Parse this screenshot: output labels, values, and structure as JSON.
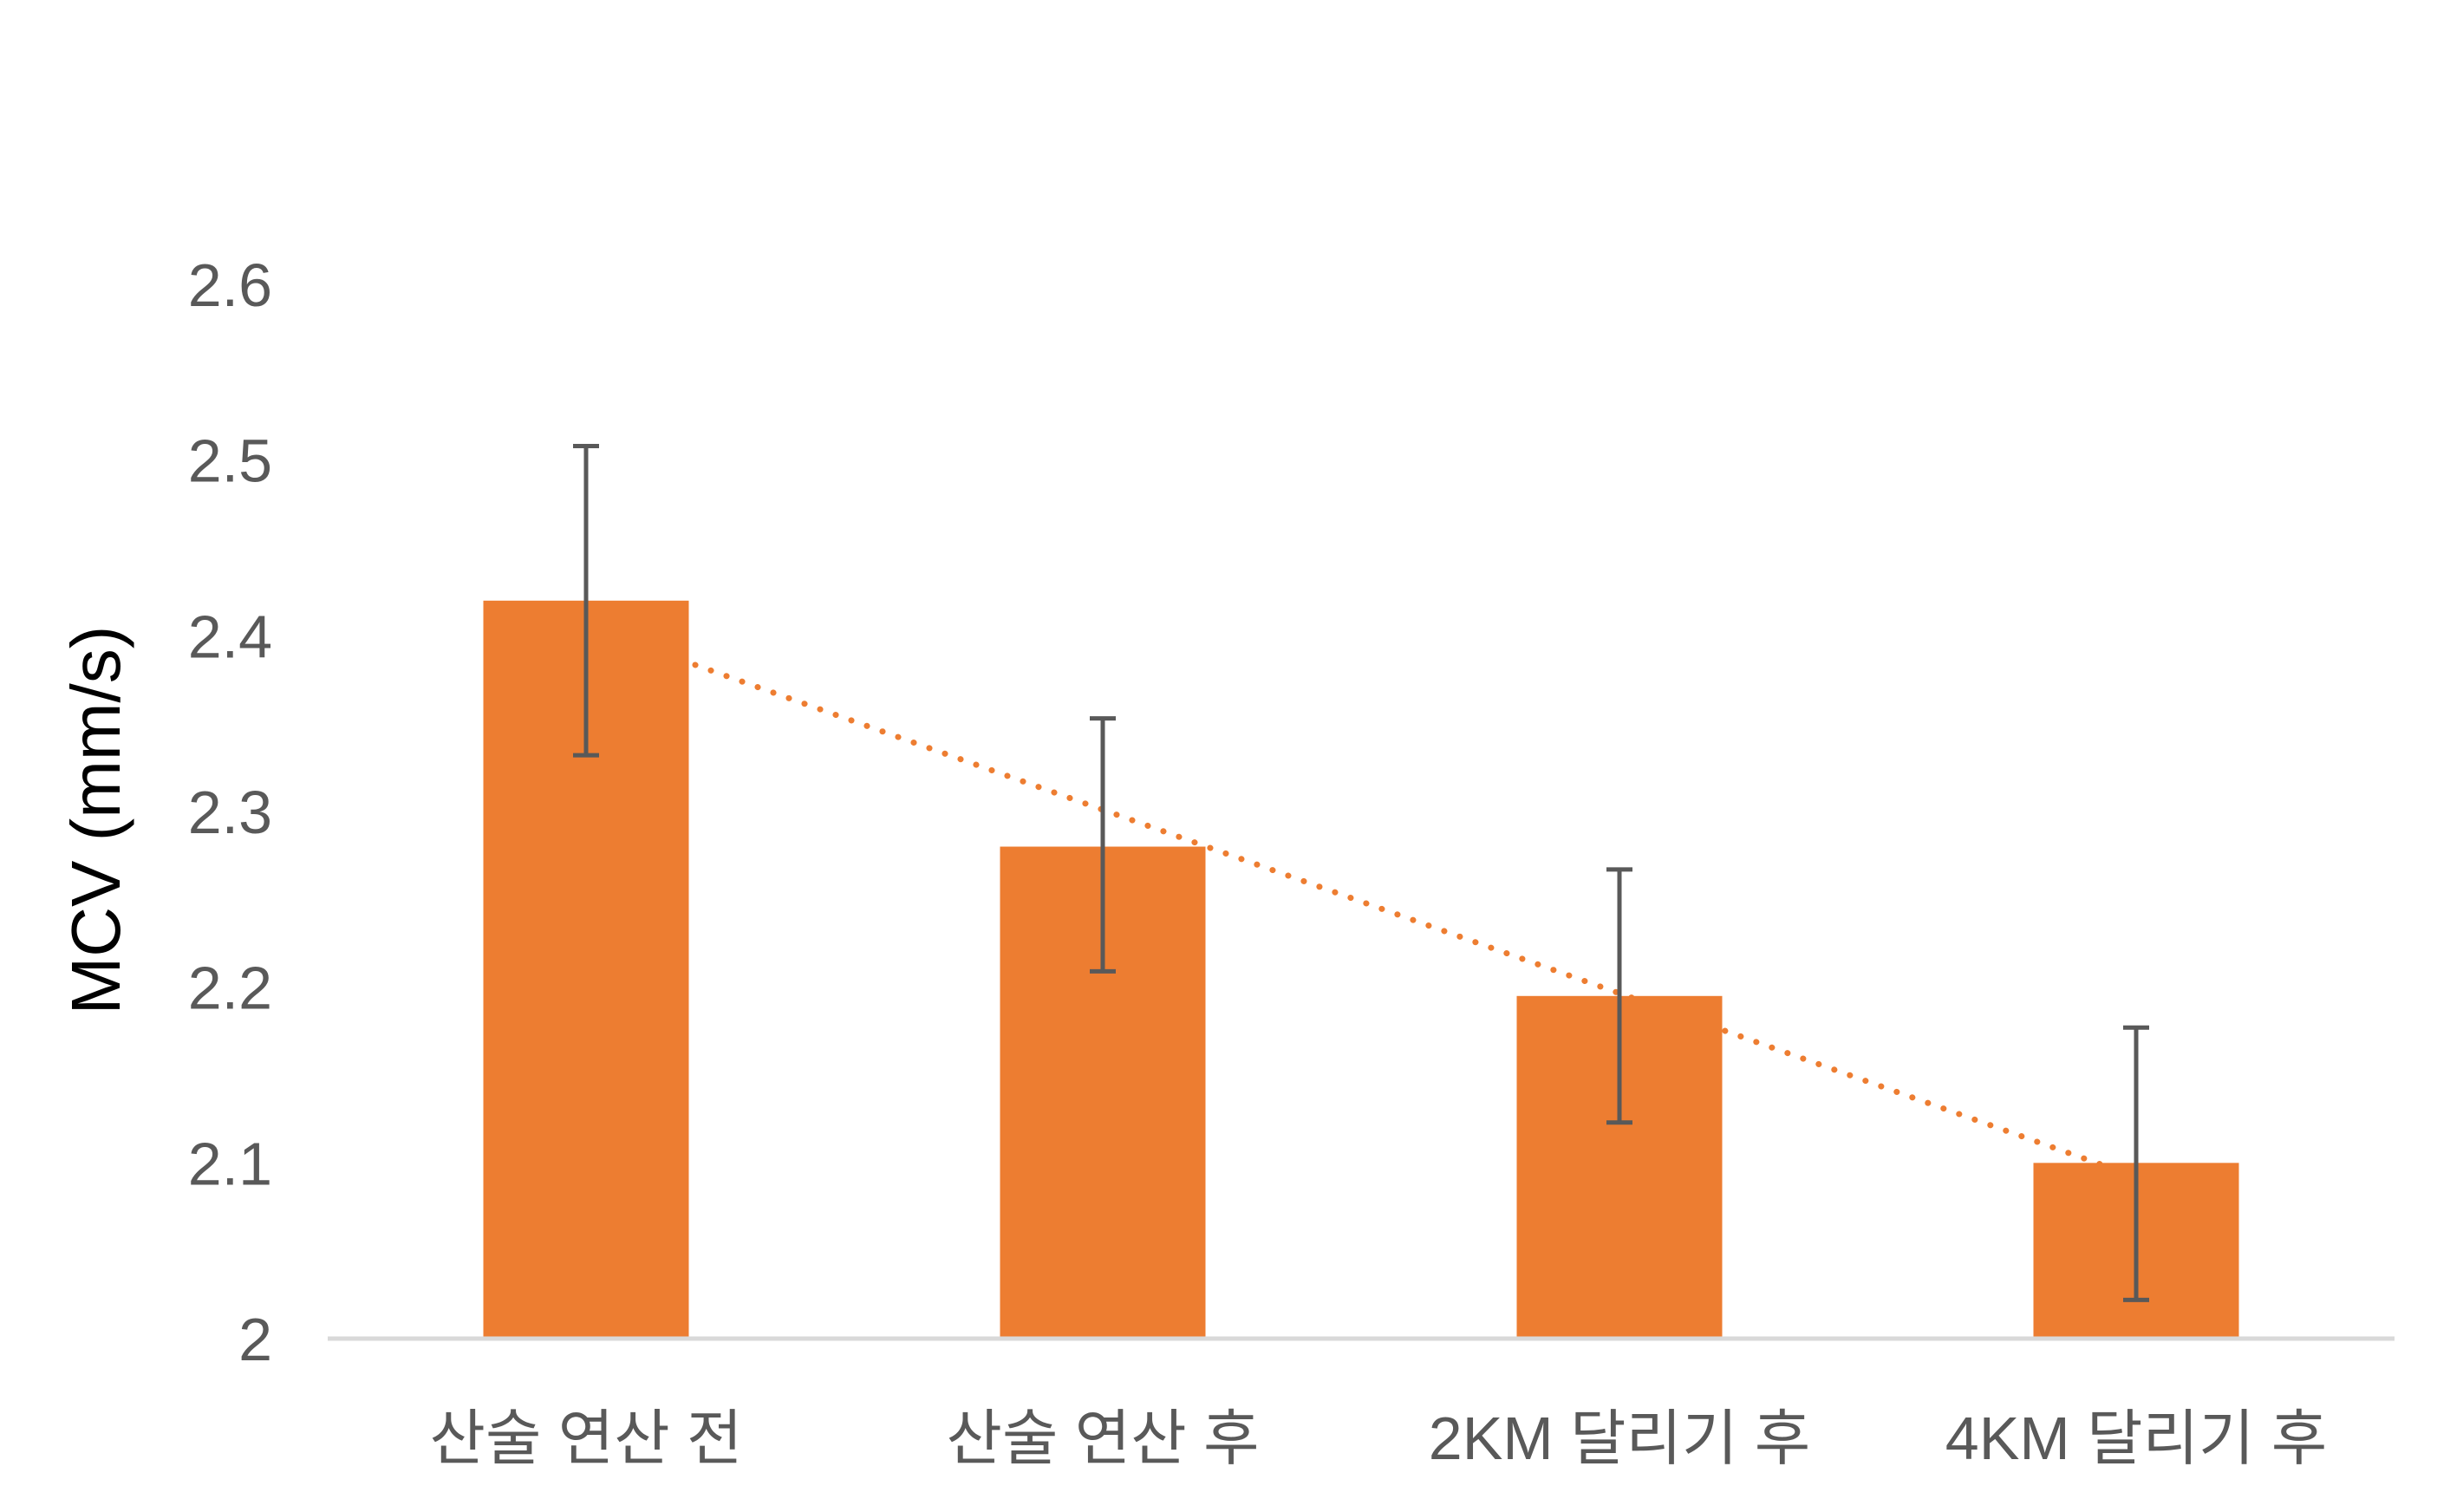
{
  "chart_data": {
    "type": "bar",
    "title": "",
    "xlabel": "",
    "ylabel": "MCV (mm/s)",
    "categories": [
      "산술 연산 전",
      "산술 연산 후",
      "2KM 달리기 후",
      "4KM 달리기 후"
    ],
    "values": [
      2.42,
      2.28,
      2.195,
      2.1
    ],
    "error_bars": [
      {
        "low": 2.332,
        "high": 2.508
      },
      {
        "low": 2.209,
        "high": 2.353
      },
      {
        "low": 2.123,
        "high": 2.267
      },
      {
        "low": 2.022,
        "high": 2.177
      }
    ],
    "ylim": [
      2.0,
      2.6
    ],
    "yticks": [
      {
        "value": 2.0,
        "label": "2"
      },
      {
        "value": 2.1,
        "label": "2.1"
      },
      {
        "value": 2.2,
        "label": "2.2"
      },
      {
        "value": 2.3,
        "label": "2.3"
      },
      {
        "value": 2.4,
        "label": "2.4"
      },
      {
        "value": 2.5,
        "label": "2.5"
      },
      {
        "value": 2.6,
        "label": "2.6"
      }
    ],
    "trendline": {
      "type": "linear",
      "style": "dotted"
    },
    "grid": false,
    "legend": "none",
    "colors": {
      "bar": "#ED7D31",
      "trendline": "#ED7D31",
      "error_bar": "#595959",
      "axis_line": "#D9D9D9",
      "tick_label": "#595959",
      "ylabel": "#000000"
    }
  }
}
